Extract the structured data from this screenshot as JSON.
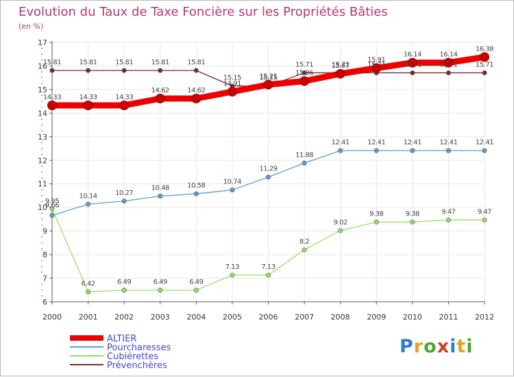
{
  "chart_data": {
    "type": "line",
    "title": "Evolution du Taux de Taxe Foncière sur les Propriétés Bâties",
    "subtitle": "(en %)",
    "x": [
      "2000",
      "2001",
      "2002",
      "2003",
      "2004",
      "2005",
      "2006",
      "2007",
      "2008",
      "2009",
      "2010",
      "2011",
      "2012"
    ],
    "ylim": [
      6,
      17
    ],
    "yticks": [
      6,
      7,
      8,
      9,
      10,
      11,
      12,
      13,
      14,
      15,
      16,
      17
    ],
    "series": [
      {
        "name": "ALTIER",
        "color": "#ee0000",
        "values": [
          14.33,
          14.33,
          14.33,
          14.62,
          14.62,
          14.91,
          15.21,
          15.36,
          15.67,
          15.91,
          16.14,
          16.14,
          16.38
        ],
        "labels": [
          "14.33",
          "14.33",
          "14.33",
          "14.62",
          "14.62",
          "14.91",
          "15.21",
          "15.36",
          "15.67",
          "15.91",
          "16.14",
          "16.14",
          "16.38"
        ]
      },
      {
        "name": "Pourcharesses",
        "color": "#5e9ccf",
        "values": [
          9.66,
          10.14,
          10.27,
          10.48,
          10.58,
          10.74,
          11.29,
          11.88,
          12.41,
          12.41,
          12.41,
          12.41,
          12.41
        ],
        "labels": [
          "9.66",
          "10.14",
          "10.27",
          "10.48",
          "10.58",
          "10.74",
          "11.29",
          "11.88",
          "12.41",
          "12.41",
          "12.41",
          "12.41",
          "12.41"
        ]
      },
      {
        "name": "Cubiérettes",
        "color": "#99dd66",
        "values": [
          9.95,
          6.42,
          6.49,
          6.49,
          6.49,
          7.13,
          7.13,
          8.2,
          9.02,
          9.38,
          9.38,
          9.47,
          9.47
        ],
        "labels": [
          "9.95",
          "6.42",
          "6.49",
          "6.49",
          "6.49",
          "7.13",
          "7.13",
          "8.2",
          "9.02",
          "9.38",
          "9.38",
          "9.47",
          "9.47"
        ]
      },
      {
        "name": "Prévenchères",
        "color": "#7a2a32",
        "values": [
          15.81,
          15.81,
          15.81,
          15.81,
          15.81,
          15.15,
          15.15,
          15.71,
          15.71,
          15.71,
          15.71,
          15.71,
          15.71
        ],
        "labels": [
          "15.81",
          "15.81",
          "15.81",
          "15.81",
          "15.81",
          "15.15",
          "15.15",
          "15.71",
          "15.71",
          "15.71",
          "15.71",
          "15.71",
          "15.71"
        ]
      }
    ],
    "legend_position": "bottom-left"
  },
  "logo": {
    "letters": [
      "P",
      "r",
      "o",
      "x",
      "i",
      "t",
      "i"
    ]
  }
}
